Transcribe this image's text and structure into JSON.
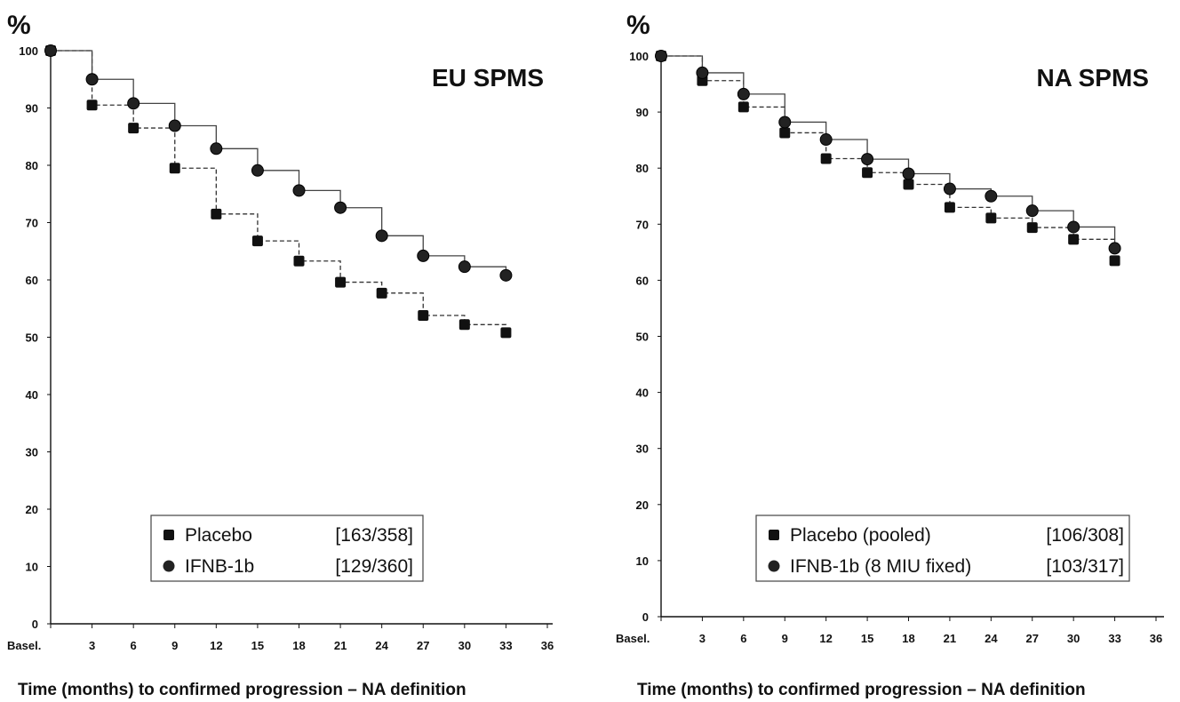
{
  "chart_data": [
    {
      "type": "line",
      "title": "EU SPMS",
      "ylabel": "%",
      "xlabel": "Time (months) to confirmed progression – NA definition",
      "x_ticks": [
        "Basel.",
        "3",
        "6",
        "9",
        "12",
        "15",
        "18",
        "21",
        "24",
        "27",
        "30",
        "33",
        "36"
      ],
      "y_ticks": [
        "0",
        "10",
        "20",
        "30",
        "40",
        "50",
        "60",
        "70",
        "80",
        "90",
        "100"
      ],
      "xlim": [
        0,
        36
      ],
      "ylim": [
        0,
        100
      ],
      "step": true,
      "series": [
        {
          "name": "Placebo",
          "count": "[163/358]",
          "marker": "square",
          "line_style": "dashed",
          "x": [
            0,
            3,
            6,
            9,
            12,
            15,
            18,
            21,
            24,
            27,
            30,
            33
          ],
          "y": [
            100,
            90.5,
            86.5,
            79.5,
            71.5,
            66.8,
            63.3,
            59.6,
            57.7,
            53.8,
            52.2,
            50.8
          ]
        },
        {
          "name": "IFNB-1b",
          "count": "[129/360]",
          "marker": "circle",
          "line_style": "solid",
          "x": [
            0,
            3,
            6,
            9,
            12,
            15,
            18,
            21,
            24,
            27,
            30,
            33
          ],
          "y": [
            100,
            95,
            90.8,
            86.9,
            82.9,
            79.1,
            75.6,
            72.6,
            67.7,
            64.2,
            62.3,
            60.8
          ]
        }
      ]
    },
    {
      "type": "line",
      "title": "NA SPMS",
      "ylabel": "%",
      "xlabel": "Time (months) to confirmed progression – NA definition",
      "x_ticks": [
        "Basel.",
        "3",
        "6",
        "9",
        "12",
        "15",
        "18",
        "21",
        "24",
        "27",
        "30",
        "33",
        "36"
      ],
      "y_ticks": [
        "0",
        "10",
        "20",
        "30",
        "40",
        "50",
        "60",
        "70",
        "80",
        "90",
        "100"
      ],
      "xlim": [
        0,
        36
      ],
      "ylim": [
        0,
        100
      ],
      "step": true,
      "series": [
        {
          "name": "Placebo (pooled)",
          "count": "[106/308]",
          "marker": "square",
          "line_style": "dashed",
          "x": [
            0,
            3,
            6,
            9,
            12,
            15,
            18,
            21,
            24,
            27,
            30,
            33
          ],
          "y": [
            100,
            95.6,
            90.9,
            86.3,
            81.7,
            79.2,
            77.1,
            73,
            71.1,
            69.4,
            67.3,
            63.5
          ]
        },
        {
          "name": "IFNB-1b (8 MIU fixed)",
          "count": "[103/317]",
          "marker": "circle",
          "line_style": "solid",
          "x": [
            0,
            3,
            6,
            9,
            12,
            15,
            18,
            21,
            24,
            27,
            30,
            33
          ],
          "y": [
            100,
            97,
            93.2,
            88.2,
            85.1,
            81.6,
            79,
            76.3,
            75,
            72.4,
            69.5,
            65.7
          ]
        }
      ]
    }
  ]
}
